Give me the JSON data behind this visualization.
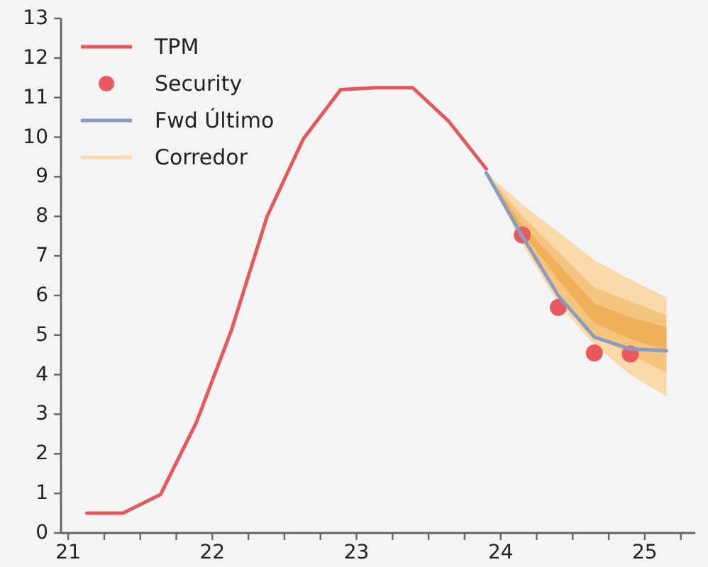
{
  "chart_data": {
    "type": "line",
    "legend": "top left",
    "grid": false,
    "xlim": [
      20.95,
      25.35
    ],
    "xticks": [
      21,
      {
        "value": 21.25,
        "label": null
      },
      {
        "value": 21.5,
        "label": null
      },
      {
        "value": 21.75,
        "label": null
      },
      22,
      {
        "value": 22.25,
        "label": null
      },
      {
        "value": 22.5,
        "label": null
      },
      {
        "value": 22.75,
        "label": null
      },
      23,
      {
        "value": 23.25,
        "label": null
      },
      {
        "value": 23.5,
        "label": null
      },
      {
        "value": 23.75,
        "label": null
      },
      24,
      {
        "value": 24.25,
        "label": null
      },
      {
        "value": 24.5,
        "label": null
      },
      {
        "value": 24.75,
        "label": null
      },
      25,
      {
        "value": 25.25,
        "label": null
      }
    ],
    "ylim": [
      0,
      13
    ],
    "yticks": [
      0,
      1,
      2,
      3,
      4,
      5,
      6,
      7,
      8,
      9,
      10,
      11,
      12,
      13
    ],
    "series": [
      {
        "name": "Corredor",
        "color": "#f9d9a8",
        "x": [
          23.9,
          24.15,
          24.4,
          24.65,
          24.9,
          25.15
        ],
        "values": [
          null,
          null,
          null,
          null,
          null,
          null
        ],
        "upper": [
          9.1,
          8.3,
          7.6,
          6.9,
          6.4,
          5.95
        ],
        "lower": [
          9.1,
          7.3,
          5.8,
          4.75,
          4.0,
          3.45
        ]
      },
      {
        "color": "#f5c47e",
        "x": [
          23.9,
          24.15,
          24.4,
          24.65,
          24.9,
          25.15
        ],
        "values": [
          null,
          null,
          null,
          null,
          null,
          null
        ],
        "upper": [
          9.1,
          8.0,
          7.1,
          6.2,
          5.85,
          5.5
        ],
        "lower": [
          9.1,
          7.5,
          6.1,
          5.0,
          4.5,
          4.05
        ]
      },
      {
        "color": "#f0b05a",
        "x": [
          23.9,
          24.15,
          24.4,
          24.65,
          24.9,
          25.15
        ],
        "values": [
          null,
          null,
          null,
          null,
          null,
          null
        ],
        "upper": [
          9.1,
          7.8,
          6.8,
          5.8,
          5.45,
          5.2
        ],
        "lower": [
          9.1,
          7.6,
          6.4,
          5.3,
          4.9,
          4.6
        ]
      },
      {
        "name": "TPM",
        "color": "#e35a5e",
        "x": [
          21.13,
          21.38,
          21.64,
          21.89,
          22.13,
          22.38,
          22.63,
          22.89,
          23.13,
          23.39,
          23.64,
          23.9
        ],
        "values": [
          0.5,
          0.5,
          0.97,
          2.8,
          5.1,
          8.0,
          9.95,
          11.2,
          11.25,
          11.25,
          10.4,
          9.2
        ]
      },
      {
        "name": "Security",
        "type": "scatter",
        "marker": "circle",
        "color": "#e85a5f",
        "x": [
          24.15,
          24.4,
          24.65,
          24.9
        ],
        "values": [
          7.53,
          5.7,
          4.55,
          4.52
        ]
      },
      {
        "name": "Fwd Último",
        "color": "#8c9cc0",
        "x": [
          23.9,
          24.15,
          24.4,
          24.65,
          24.9,
          25.15
        ],
        "values": [
          9.1,
          7.5,
          6.0,
          4.95,
          4.65,
          4.6
        ]
      }
    ]
  }
}
